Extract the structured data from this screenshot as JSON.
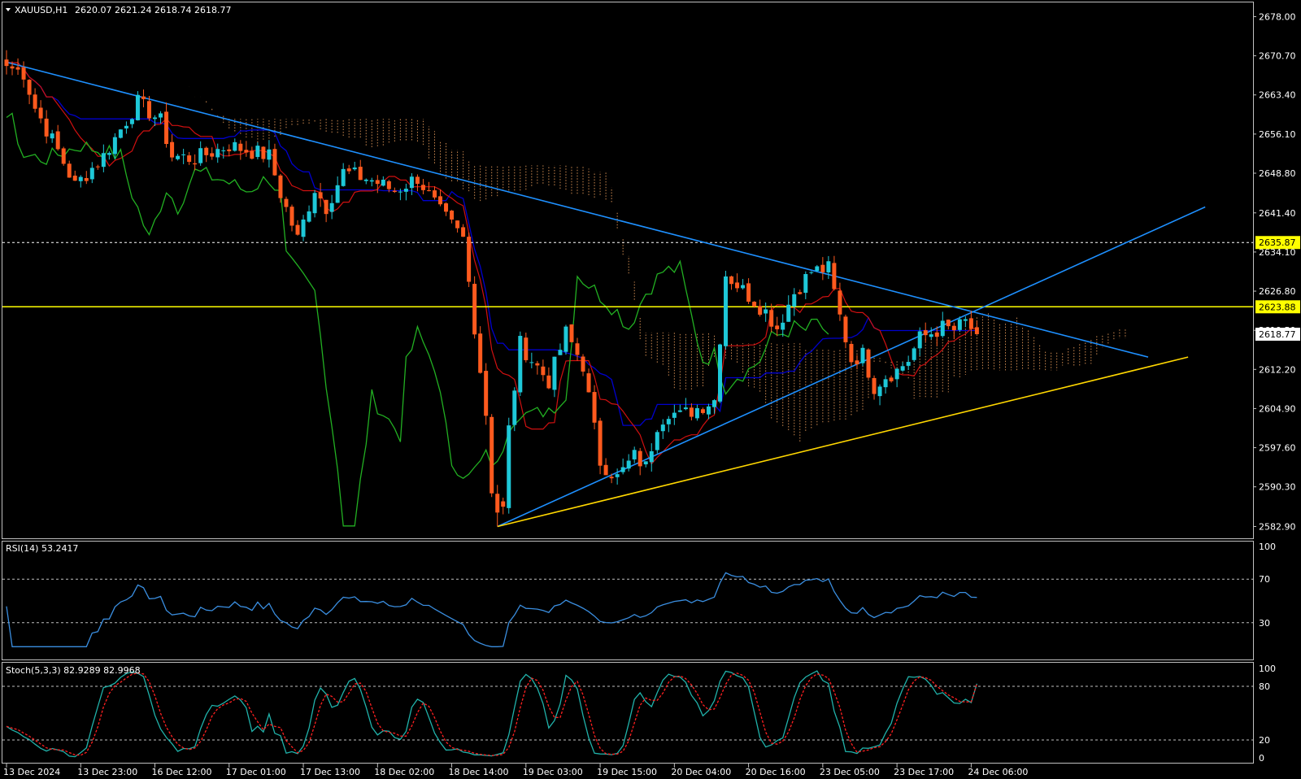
{
  "window": {
    "symbol_label": "XAUUSD,H1",
    "ohlc_text": "2620.07 2621.24 2618.74 2618.77"
  },
  "main_panel": {
    "price_ticks": [
      "2678.00",
      "2670.70",
      "2663.40",
      "2656.10",
      "2648.80",
      "2641.40",
      "2634.10",
      "2626.80",
      "2619.50",
      "2612.20",
      "2604.90",
      "2597.60",
      "2590.30",
      "2582.90"
    ],
    "tick_values": [
      2678.0,
      2670.7,
      2663.4,
      2656.1,
      2648.8,
      2641.4,
      2634.1,
      2626.8,
      2619.5,
      2612.2,
      2604.9,
      2597.6,
      2590.3,
      2582.9
    ],
    "ylim": [
      2581.0,
      2680.5
    ],
    "levels": [
      {
        "label": "2635.87",
        "value": 2635.87,
        "style": "dotted",
        "color": "#ffffff"
      },
      {
        "label": "2623.88",
        "value": 2623.88,
        "style": "solid",
        "color": "#ffff00"
      }
    ],
    "current_price": {
      "label": "2618.77",
      "value": 2618.77
    }
  },
  "time_axis": {
    "labels": [
      "13 Dec 2024",
      "13 Dec 23:00",
      "16 Dec 12:00",
      "17 Dec 01:00",
      "17 Dec 13:00",
      "18 Dec 02:00",
      "18 Dec 14:00",
      "19 Dec 03:00",
      "19 Dec 15:00",
      "20 Dec 04:00",
      "20 Dec 16:00",
      "23 Dec 05:00",
      "23 Dec 17:00",
      "24 Dec 06:00"
    ],
    "label_bar_index": [
      0,
      13,
      26,
      39,
      52,
      65,
      78,
      91,
      104,
      117,
      130,
      143,
      156,
      169
    ]
  },
  "rsi_panel": {
    "label": "RSI(14) 53.2417",
    "ticks": [
      "100",
      "70",
      "30"
    ],
    "tick_values": [
      100,
      70,
      30
    ],
    "levels": [
      70,
      30
    ],
    "ylim": [
      0,
      100
    ]
  },
  "stoch_panel": {
    "label": "Stoch(5,3,3) 82.9289 82.9968",
    "ticks": [
      "100",
      "80",
      "20",
      "0"
    ],
    "tick_values": [
      100,
      80,
      20,
      0
    ],
    "levels": [
      80,
      20
    ],
    "ylim": [
      0,
      100
    ]
  },
  "colors": {
    "bull": "#1ec8d8",
    "bear": "#ff5a1e",
    "trendline": "#1e90ff",
    "support": "#ffd700",
    "kijun": "#0000cd",
    "tenkan": "#d01010",
    "chikou": "#22b022",
    "cloud": "#f4a460",
    "rsi": "#3a8ee0",
    "stoch_main": "#20b2aa",
    "stoch_signal": "#ff2020"
  },
  "chart_data": {
    "type": "candlestick",
    "symbol": "XAUUSD",
    "timeframe": "H1",
    "bar_count": 171,
    "anchors": {
      "bars": [
        0,
        3,
        5,
        9,
        12,
        17,
        23,
        27,
        29,
        33,
        39,
        46,
        48,
        51,
        54,
        56,
        59,
        64,
        68,
        72,
        76,
        80,
        84,
        85,
        87,
        88,
        90,
        92,
        95,
        98,
        101,
        104,
        107,
        110,
        112,
        114,
        116,
        118,
        120,
        124,
        126,
        128,
        130,
        133,
        135,
        138,
        141,
        144,
        146,
        148,
        150,
        152,
        154,
        156,
        158,
        160,
        162,
        164,
        166,
        168,
        170
      ],
      "close": [
        2668.8,
        2667.5,
        2661,
        2653,
        2646.5,
        2652,
        2662,
        2658.5,
        2652,
        2651.5,
        2654,
        2652,
        2645,
        2636.5,
        2646,
        2642.5,
        2649,
        2647.5,
        2645.5,
        2648,
        2641.5,
        2636.5,
        2604,
        2590,
        2586,
        2601,
        2617,
        2614,
        2610,
        2619,
        2613,
        2595,
        2592,
        2596,
        2594,
        2602,
        2604.5,
        2603.5,
        2604.5,
        2606.5,
        2630,
        2628,
        2626,
        2623,
        2620,
        2626.5,
        2630.5,
        2631,
        2622,
        2614,
        2615,
        2609,
        2611,
        2612,
        2614,
        2618,
        2619,
        2620,
        2619.5,
        2621,
        2618.77
      ]
    },
    "indicators": [
      "Ichimoku cloud",
      "Kijun",
      "Tenkan",
      "Chikou",
      "RSI(14)",
      "Stoch(5,3,3)"
    ],
    "trendlines": [
      {
        "name": "descending resistance",
        "from": {
          "bar": 0,
          "price": 2669.5
        },
        "to": {
          "bar": 200,
          "price": 2614.5
        }
      },
      {
        "name": "ascending support",
        "from": {
          "bar": 86,
          "price": 2582.9
        },
        "to": {
          "bar": 210,
          "price": 2642.5
        }
      },
      {
        "name": "lower support",
        "from": {
          "bar": 86,
          "price": 2582.9
        },
        "to": {
          "bar": 207,
          "price": 2614.5
        }
      }
    ],
    "rsi_last": 53.2417,
    "stoch_main_last": 82.9289,
    "stoch_signal_last": 82.9968
  }
}
